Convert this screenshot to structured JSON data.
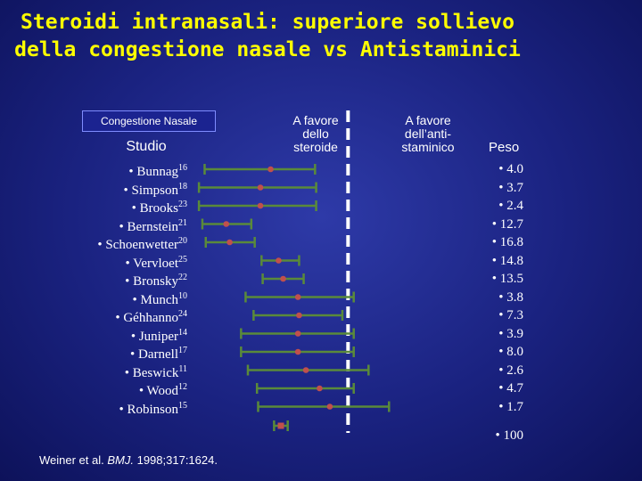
{
  "title_line1": "Steroidi intranasali: superiore sollievo",
  "title_line2": "della congestione nasale  vs Antistaminici",
  "legend_label": "Congestione Nasale",
  "studio_header": "Studio",
  "favor_left": [
    "A favore",
    "dello",
    "steroide"
  ],
  "favor_right": [
    "A favore",
    "dell’anti-",
    "staminico"
  ],
  "weight_header": "Peso",
  "citation": {
    "authors": "Weiner et al. ",
    "journal": "BMJ.",
    "rest": " 1998;317:1624."
  },
  "colors": {
    "title": "#ffff00",
    "ci_line": "#5a8a3a",
    "point": "#c0504d",
    "null_line": "#ffffff"
  },
  "chart_data": {
    "type": "forest",
    "studies": [
      {
        "name": "• Bunnag",
        "ref": "16",
        "weight": "• 4.0"
      },
      {
        "name": "• Simpson",
        "ref": "18",
        "weight": "• 3.7"
      },
      {
        "name": "• Brooks",
        "ref": "23",
        "weight": "• 2.4"
      },
      {
        "name": "• Bernstein",
        "ref": "21",
        "weight": "• 12.7"
      },
      {
        "name": "• Schoenwetter",
        "ref": "20",
        "weight": "• 16.8"
      },
      {
        "name": "• Vervloet",
        "ref": "25",
        "weight": "• 14.8"
      },
      {
        "name": "• Bronsky",
        "ref": "22",
        "weight": "• 13.5"
      },
      {
        "name": "• Munch",
        "ref": "10",
        "weight": "• 3.8"
      },
      {
        "name": "• Géhhanno",
        "ref": "24",
        "weight": "• 7.3"
      },
      {
        "name": "• Juniper",
        "ref": "14",
        "weight": "• 3.9"
      },
      {
        "name": "• Darnell",
        "ref": "17",
        "weight": "• 8.0"
      },
      {
        "name": "• Beswick",
        "ref": "11",
        "weight": "• 2.6"
      },
      {
        "name": "• Wood",
        "ref": "12",
        "weight": "• 4.7"
      },
      {
        "name": "• Robinson",
        "ref": "15",
        "weight": "• 1.7"
      }
    ],
    "pooled": {
      "weight": "• 100"
    },
    "effects": [
      -0.68,
      -0.77,
      -0.77,
      -1.07,
      -1.04,
      -0.61,
      -0.57,
      -0.44,
      -0.43,
      -0.44,
      -0.44,
      -0.37,
      -0.25,
      -0.16
    ],
    "ci_low": [
      -1.26,
      -1.31,
      -1.31,
      -1.28,
      -1.25,
      -0.76,
      -0.75,
      -0.9,
      -0.83,
      -0.94,
      -0.94,
      -0.88,
      -0.8,
      -0.79
    ],
    "ci_high": [
      -0.29,
      -0.28,
      -0.28,
      -0.85,
      -0.82,
      -0.43,
      -0.39,
      0.05,
      -0.05,
      0.05,
      0.05,
      0.18,
      0.05,
      0.36
    ],
    "pooled_effect": -0.59,
    "pooled_ci": [
      -0.65,
      -0.53
    ],
    "null_value": 0,
    "xlim": [
      -1.35,
      0.35
    ]
  }
}
